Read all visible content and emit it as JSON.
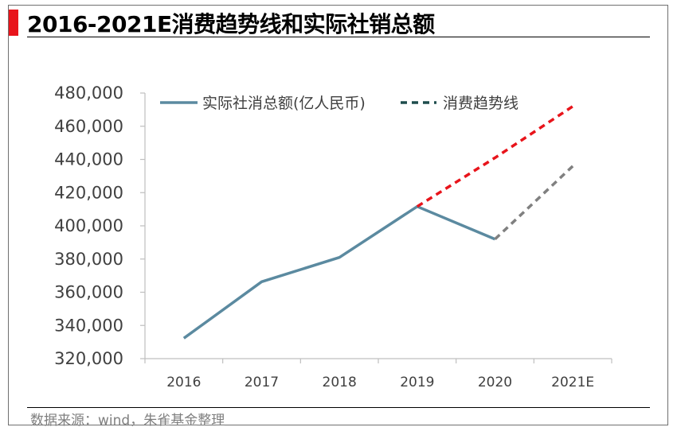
{
  "title": "2016-2021E消费趋势线和实际社销总额",
  "source": "数据来源：wind，朱雀基金整理",
  "colors": {
    "accent_bar": "#e8141b",
    "actual_series": "#5b8aa0",
    "trend_series": "#e8141b",
    "projection_series": "#808080",
    "legend_trend_swatch": "#1e4d4d",
    "axis": "#bfbfbf"
  },
  "chart_data": {
    "type": "line",
    "categories": [
      "2016",
      "2017",
      "2018",
      "2019",
      "2020",
      "2021E"
    ],
    "yticks": [
      "320,000",
      "340,000",
      "360,000",
      "380,000",
      "400,000",
      "420,000",
      "440,000",
      "460,000",
      "480,000"
    ],
    "ylim": [
      320000,
      480000
    ],
    "grid": false,
    "legend_placement": "top",
    "legend": [
      "实际社消总额(亿人民币)",
      "消费趋势线"
    ],
    "series": [
      {
        "name": "实际社消总额(亿人民币)",
        "style": "solid",
        "values": [
          332300,
          366300,
          380990,
          411650,
          391980,
          null
        ]
      },
      {
        "name": "消费趋势线",
        "style": "dashed",
        "values": [
          null,
          null,
          null,
          411650,
          441000,
          472000
        ]
      },
      {
        "style": "dashed",
        "values": [
          null,
          null,
          null,
          null,
          391980,
          436000
        ]
      }
    ]
  }
}
